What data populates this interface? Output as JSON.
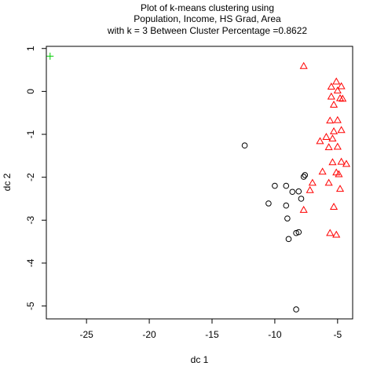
{
  "chart_data": {
    "type": "scatter",
    "title": [
      "Plot of k-means clustering using",
      "Population, Income, HS Grad, Area",
      "with  k = 3 Between Cluster Percentage =0.8622"
    ],
    "xlabel": "dc 1",
    "ylabel": "dc 2",
    "xlim": [
      -28.2,
      -3.8
    ],
    "ylim": [
      -5.3,
      1.05
    ],
    "xticks": [
      -25,
      -20,
      -15,
      -10,
      -5
    ],
    "yticks": [
      1,
      0,
      -1,
      -2,
      -3,
      -4,
      -5
    ],
    "xtick_labels": [
      "-25",
      "-20",
      "-15",
      "-10",
      "-5"
    ],
    "ytick_labels": [
      "1",
      "0",
      "-1",
      "-2",
      "-3",
      "-4",
      "-5"
    ],
    "grid": false,
    "series": [
      {
        "marker": "plus",
        "color": "#00cd00",
        "points": [
          [
            -27.9,
            0.82
          ]
        ]
      },
      {
        "marker": "circle",
        "color": "#000000",
        "points": [
          [
            -12.4,
            -1.26
          ],
          [
            -10.0,
            -2.2
          ],
          [
            -9.1,
            -2.2
          ],
          [
            -8.6,
            -2.34
          ],
          [
            -8.1,
            -2.33
          ],
          [
            -7.6,
            -1.95
          ],
          [
            -7.7,
            -1.99
          ],
          [
            -10.5,
            -2.61
          ],
          [
            -9.1,
            -2.66
          ],
          [
            -7.9,
            -2.5
          ],
          [
            -9.0,
            -2.96
          ],
          [
            -8.1,
            -3.28
          ],
          [
            -8.3,
            -3.3
          ],
          [
            -8.9,
            -3.44
          ],
          [
            -8.3,
            -5.08
          ]
        ]
      },
      {
        "marker": "triangle",
        "color": "#ff0000",
        "points": [
          [
            -7.7,
            0.59
          ],
          [
            -5.1,
            0.23
          ],
          [
            -5.5,
            0.11
          ],
          [
            -4.7,
            0.12
          ],
          [
            -5.0,
            0.02
          ],
          [
            -5.5,
            -0.12
          ],
          [
            -4.8,
            -0.16
          ],
          [
            -4.6,
            -0.17
          ],
          [
            -5.3,
            -0.31
          ],
          [
            -5.6,
            -0.68
          ],
          [
            -5.0,
            -0.67
          ],
          [
            -5.3,
            -0.93
          ],
          [
            -4.7,
            -0.9
          ],
          [
            -5.9,
            -1.06
          ],
          [
            -6.4,
            -1.16
          ],
          [
            -5.4,
            -1.1
          ],
          [
            -5.7,
            -1.3
          ],
          [
            -5.0,
            -1.29
          ],
          [
            -5.4,
            -1.65
          ],
          [
            -4.7,
            -1.64
          ],
          [
            -4.3,
            -1.69
          ],
          [
            -6.2,
            -1.87
          ],
          [
            -5.1,
            -1.89
          ],
          [
            -4.9,
            -1.93
          ],
          [
            -5.7,
            -2.13
          ],
          [
            -7.0,
            -2.13
          ],
          [
            -7.2,
            -2.3
          ],
          [
            -4.8,
            -2.27
          ],
          [
            -7.7,
            -2.76
          ],
          [
            -5.3,
            -2.69
          ],
          [
            -5.6,
            -3.3
          ],
          [
            -5.1,
            -3.34
          ]
        ]
      }
    ]
  }
}
